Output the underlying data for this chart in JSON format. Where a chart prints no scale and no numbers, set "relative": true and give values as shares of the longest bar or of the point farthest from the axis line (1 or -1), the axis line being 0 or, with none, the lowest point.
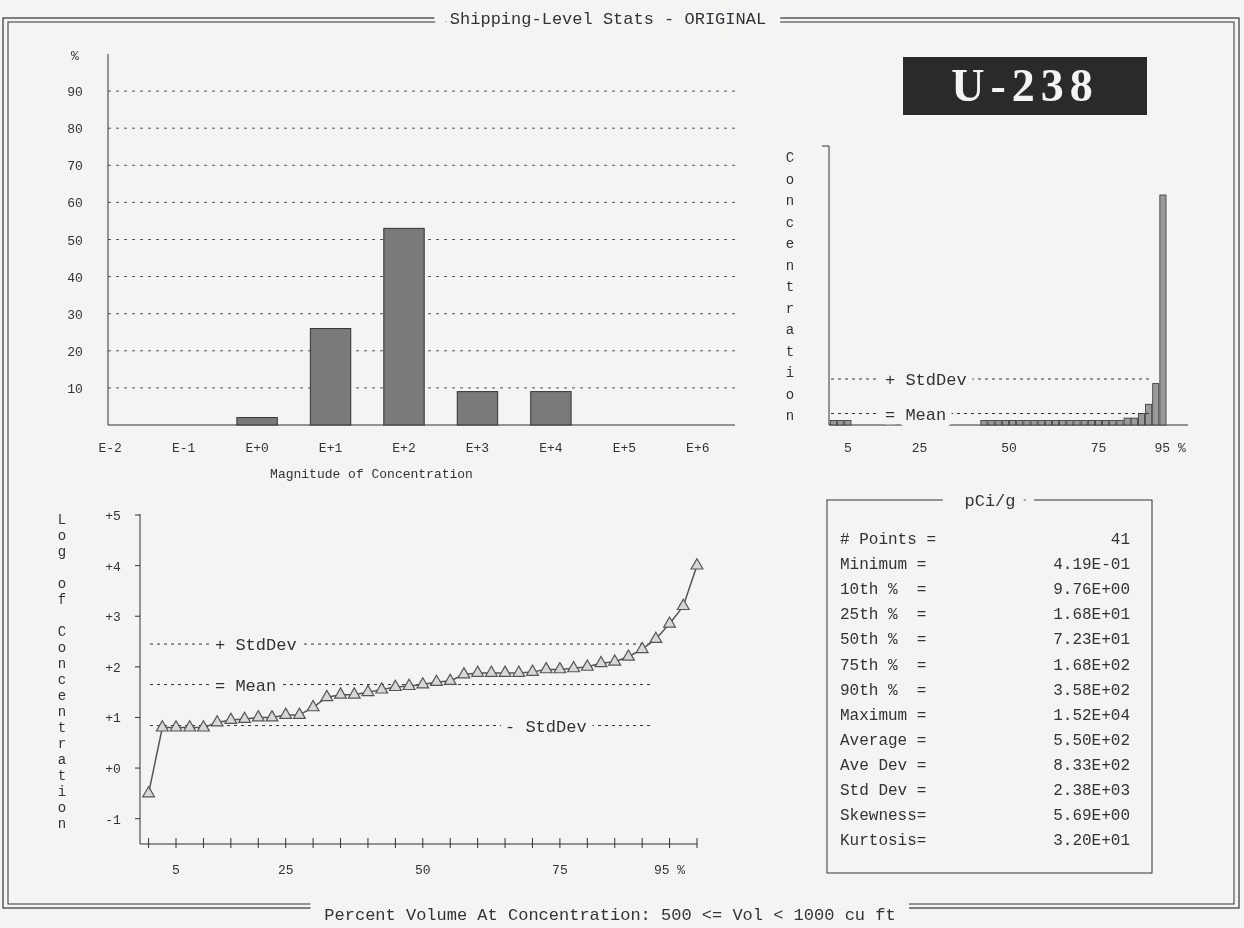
{
  "chart_data": [
    {
      "type": "bar",
      "title": "Shipping-Level Stats - ORIGINAL",
      "xlabel": "Magnitude of Concentration",
      "ylabel": "%",
      "categories": [
        "E-2",
        "E-1",
        "E+0",
        "E+1",
        "E+2",
        "E+3",
        "E+4",
        "E+5",
        "E+6"
      ],
      "values": [
        0,
        0,
        2,
        26,
        53,
        9,
        9,
        0,
        0
      ],
      "color": "#7a7a7a",
      "ylim": [
        0,
        100
      ],
      "yticks": [
        10,
        20,
        30,
        40,
        50,
        60,
        70,
        80,
        90
      ],
      "grid": "y"
    },
    {
      "type": "bar",
      "title": "U-238",
      "ylabel": "Concentration",
      "relative": true,
      "color": "#9a9a9a",
      "x": [
        1,
        3,
        5,
        43,
        45,
        47,
        49,
        51,
        53,
        55,
        57,
        59,
        61,
        63,
        65,
        67,
        69,
        71,
        73,
        75,
        77,
        79,
        81,
        83,
        85,
        87,
        89,
        91,
        93
      ],
      "values": [
        0.02,
        0.02,
        0.02,
        0.02,
        0.02,
        0.02,
        0.02,
        0.02,
        0.02,
        0.02,
        0.02,
        0.02,
        0.02,
        0.02,
        0.02,
        0.02,
        0.02,
        0.02,
        0.02,
        0.02,
        0.02,
        0.02,
        0.02,
        0.03,
        0.03,
        0.05,
        0.09,
        0.18,
        1
      ],
      "xlim": [
        0,
        100
      ],
      "xticks": [
        5,
        25,
        50,
        75,
        {
          "value": 95,
          "label": "95 %"
        }
      ],
      "ref_lines": [
        {
          "axis": "y",
          "value": 0.2,
          "label": "+ StdDev"
        },
        {
          "axis": "y",
          "value": 0.05,
          "label": "= Mean"
        }
      ]
    },
    {
      "type": "line",
      "ylabel": "Log of Concentration",
      "xlabel": "Percent Volume At Concentration: 500 <= Vol < 1000 cu ft",
      "color": "#555555",
      "marker": "triangle",
      "x": [
        0,
        2.5,
        5,
        7.5,
        10,
        12.5,
        15,
        17.5,
        20,
        22.5,
        25,
        27.5,
        30,
        32.5,
        35,
        37.5,
        40,
        42.5,
        45,
        47.5,
        50,
        52.5,
        55,
        57.5,
        60,
        62.5,
        65,
        67.5,
        70,
        72.5,
        75,
        77.5,
        80,
        82.5,
        85,
        87.5,
        90,
        92.5,
        95,
        97.5,
        100
      ],
      "values": [
        -0.5,
        0.8,
        0.8,
        0.8,
        0.8,
        0.9,
        0.95,
        0.97,
        1.0,
        1.0,
        1.05,
        1.05,
        1.2,
        1.4,
        1.45,
        1.45,
        1.5,
        1.55,
        1.6,
        1.62,
        1.65,
        1.7,
        1.72,
        1.85,
        1.88,
        1.88,
        1.88,
        1.88,
        1.9,
        1.95,
        1.95,
        1.97,
        2.0,
        2.07,
        2.1,
        2.2,
        2.35,
        2.55,
        2.85,
        3.2,
        4.0
      ],
      "xlim": [
        0,
        100
      ],
      "xticks": [
        {
          "value": 0,
          "label": null
        },
        5,
        {
          "value": 10,
          "label": null
        },
        {
          "value": 15,
          "label": null
        },
        {
          "value": 20,
          "label": null
        },
        25,
        {
          "value": 30,
          "label": null
        },
        {
          "value": 35,
          "label": null
        },
        {
          "value": 40,
          "label": null
        },
        {
          "value": 45,
          "label": null
        },
        50,
        {
          "value": 55,
          "label": null
        },
        {
          "value": 60,
          "label": null
        },
        {
          "value": 65,
          "label": null
        },
        {
          "value": 70,
          "label": null
        },
        75,
        {
          "value": 80,
          "label": null
        },
        {
          "value": 85,
          "label": null
        },
        {
          "value": 90,
          "label": null
        },
        {
          "value": 95,
          "label": "95 %"
        },
        {
          "value": 100,
          "label": null
        }
      ],
      "ylim": [
        -1.5,
        5
      ],
      "yticks": [
        {
          "value": 5,
          "label": "+5"
        },
        {
          "value": 4,
          "label": "+4"
        },
        {
          "value": 3,
          "label": "+3"
        },
        {
          "value": 2,
          "label": "+2"
        },
        {
          "value": 1,
          "label": "+1"
        },
        {
          "value": 0,
          "label": "+0"
        },
        -1
      ],
      "ref_lines": [
        {
          "axis": "y",
          "value": 2.45,
          "label": "+ StdDev"
        },
        {
          "axis": "y",
          "value": 1.65,
          "label": "= Mean"
        },
        {
          "axis": "y",
          "value": 0.84,
          "label": "- StdDev"
        }
      ]
    },
    {
      "type": "other",
      "title": "pCi/g",
      "annotations": [
        "# Points =",
        "41",
        "Minimum =",
        "4.19E-01",
        "10th %  =",
        "9.76E+00",
        "25th %  =",
        "1.68E+01",
        "50th %  =",
        "7.23E+01",
        "75th %  =",
        "1.68E+02",
        "90th %  =",
        "3.58E+02",
        "Maximum =",
        "1.52E+04",
        "Average =",
        "5.50E+02",
        "Ave Dev =",
        "8.33E+02",
        "Std Dev =",
        "2.38E+03",
        "Skewness=",
        "5.69E+00",
        "Kurtosis=",
        "3.20E+01"
      ]
    }
  ]
}
